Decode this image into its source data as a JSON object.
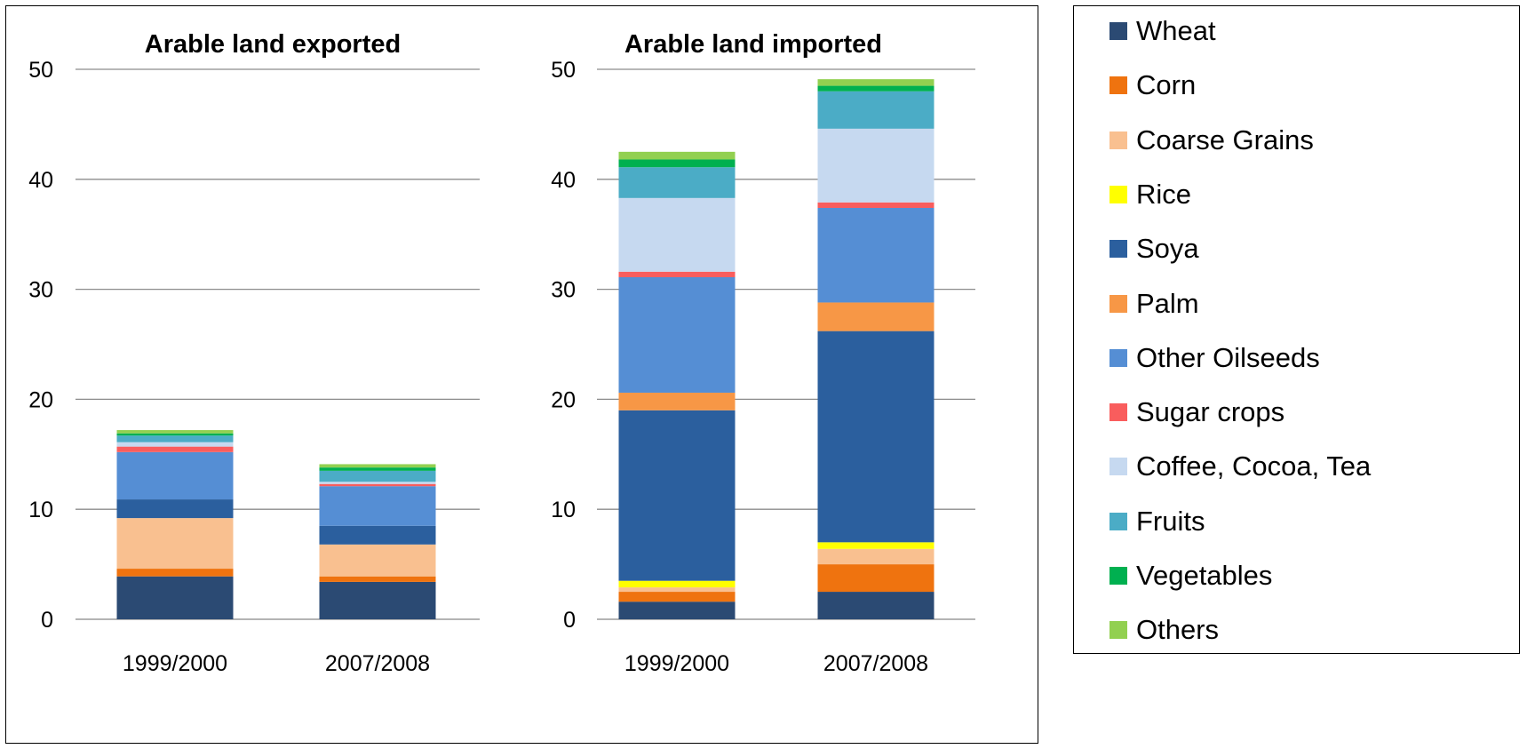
{
  "chart_data": {
    "type": "bar",
    "stacked": true,
    "legend": "right",
    "grid": true,
    "series_names": [
      "Wheat",
      "Corn",
      "Coarse Grains",
      "Rice",
      "Soya",
      "Palm",
      "Other Oilseeds",
      "Sugar crops",
      "Coffee, Cocoa, Tea",
      "Fruits",
      "Vegetables",
      "Others"
    ],
    "colors": [
      "#2b4a73",
      "#ef730f",
      "#f9c090",
      "#ffff00",
      "#2b5f9e",
      "#f79746",
      "#558ed4",
      "#f95d5d",
      "#c6d9f0",
      "#4bacc6",
      "#00b050",
      "#92d050"
    ],
    "charts": [
      {
        "title": "Arable land exported",
        "categories": [
          "1999/2000",
          "2007/2008"
        ],
        "ylim": [
          0,
          50
        ],
        "yticks": [
          0,
          10,
          20,
          30,
          40,
          50
        ],
        "values": [
          [
            3.9,
            0.7,
            4.6,
            0.0,
            1.7,
            0.0,
            4.3,
            0.5,
            0.4,
            0.6,
            0.2,
            0.3
          ],
          [
            3.4,
            0.5,
            2.9,
            0.0,
            1.7,
            0.0,
            3.6,
            0.2,
            0.2,
            1.0,
            0.3,
            0.3
          ]
        ]
      },
      {
        "title": "Arable land imported",
        "categories": [
          "1999/2000",
          "2007/2008"
        ],
        "ylim": [
          0,
          50
        ],
        "yticks": [
          0,
          10,
          20,
          30,
          40,
          50
        ],
        "values": [
          [
            1.6,
            0.9,
            0.4,
            0.6,
            15.5,
            1.6,
            10.5,
            0.5,
            6.7,
            2.8,
            0.7,
            0.7
          ],
          [
            2.5,
            2.5,
            1.4,
            0.6,
            19.2,
            2.6,
            8.6,
            0.5,
            6.7,
            3.4,
            0.5,
            0.6
          ]
        ]
      }
    ]
  }
}
